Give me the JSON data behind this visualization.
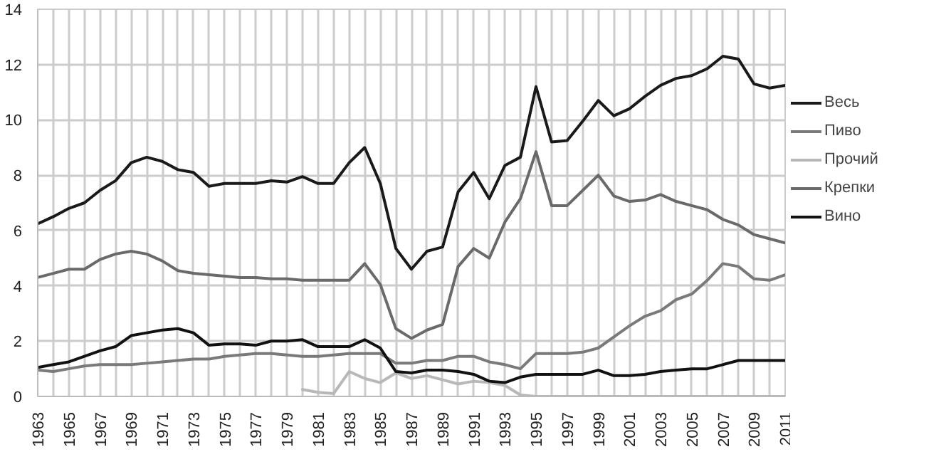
{
  "chart_data": {
    "type": "line",
    "x": [
      1963,
      1964,
      1965,
      1966,
      1967,
      1968,
      1969,
      1970,
      1971,
      1972,
      1973,
      1974,
      1975,
      1976,
      1977,
      1978,
      1979,
      1980,
      1981,
      1982,
      1983,
      1984,
      1985,
      1986,
      1987,
      1988,
      1989,
      1990,
      1991,
      1992,
      1993,
      1994,
      1995,
      1996,
      1997,
      1998,
      1999,
      2000,
      2001,
      2002,
      2003,
      2004,
      2005,
      2006,
      2007,
      2008,
      2009,
      2010,
      2011
    ],
    "series": [
      {
        "name": "Весь",
        "color": "#1a1a1a",
        "values": [
          6.24,
          6.5,
          6.8,
          7.0,
          7.45,
          7.8,
          8.45,
          8.65,
          8.5,
          8.2,
          8.1,
          7.6,
          7.7,
          7.7,
          7.7,
          7.8,
          7.75,
          7.95,
          7.7,
          7.7,
          8.45,
          9.0,
          7.7,
          5.35,
          4.6,
          5.25,
          5.4,
          7.4,
          8.1,
          7.15,
          8.35,
          8.65,
          11.2,
          9.2,
          9.25,
          9.95,
          10.7,
          10.15,
          10.4,
          10.85,
          11.25,
          11.5,
          11.6,
          11.85,
          12.3,
          12.2,
          11.3,
          11.15,
          11.25
        ]
      },
      {
        "name": "Пиво",
        "color": "#7a7a7a",
        "values": [
          0.95,
          0.9,
          1.0,
          1.1,
          1.15,
          1.15,
          1.15,
          1.2,
          1.25,
          1.3,
          1.35,
          1.35,
          1.45,
          1.5,
          1.55,
          1.55,
          1.5,
          1.45,
          1.45,
          1.5,
          1.55,
          1.55,
          1.55,
          1.2,
          1.2,
          1.3,
          1.3,
          1.45,
          1.45,
          1.25,
          1.15,
          1.0,
          1.55,
          1.55,
          1.55,
          1.6,
          1.75,
          2.15,
          2.55,
          2.9,
          3.1,
          3.5,
          3.7,
          4.2,
          4.8,
          4.7,
          4.25,
          4.2,
          4.4
        ]
      },
      {
        "name": "Прочий",
        "color": "#b8b8b8",
        "values": [
          null,
          null,
          null,
          null,
          null,
          null,
          null,
          null,
          null,
          null,
          null,
          null,
          null,
          null,
          null,
          null,
          null,
          0.25,
          0.15,
          0.1,
          0.9,
          0.65,
          0.5,
          0.85,
          0.65,
          0.75,
          0.6,
          0.45,
          0.55,
          0.5,
          0.4,
          0.05,
          0,
          0,
          0,
          0,
          0,
          0,
          0,
          0,
          0,
          0,
          0,
          0,
          0,
          0,
          0,
          0,
          0
        ]
      },
      {
        "name": "Крепки",
        "color": "#6a6a6a",
        "values": [
          4.3,
          4.45,
          4.6,
          4.6,
          4.95,
          5.15,
          5.25,
          5.15,
          4.9,
          4.55,
          4.45,
          4.4,
          4.35,
          4.3,
          4.3,
          4.25,
          4.25,
          4.2,
          4.2,
          4.2,
          4.2,
          4.8,
          4.05,
          2.45,
          2.1,
          2.4,
          2.6,
          4.7,
          5.35,
          5.0,
          6.3,
          7.15,
          8.85,
          6.9,
          6.9,
          7.45,
          8.0,
          7.25,
          7.05,
          7.1,
          7.3,
          7.05,
          6.9,
          6.75,
          6.4,
          6.2,
          5.85,
          5.7,
          5.55
        ]
      },
      {
        "name": "Вино",
        "color": "#111111",
        "values": [
          1.05,
          1.15,
          1.25,
          1.45,
          1.65,
          1.8,
          2.2,
          2.3,
          2.4,
          2.45,
          2.3,
          1.85,
          1.9,
          1.9,
          1.85,
          2.0,
          2.0,
          2.05,
          1.8,
          1.8,
          1.8,
          2.05,
          1.75,
          0.9,
          0.85,
          0.95,
          0.95,
          0.9,
          0.8,
          0.55,
          0.5,
          0.7,
          0.8,
          0.8,
          0.8,
          0.8,
          0.95,
          0.75,
          0.75,
          0.8,
          0.9,
          0.95,
          1.0,
          1.0,
          1.15,
          1.3,
          1.3,
          1.3,
          1.3
        ]
      }
    ],
    "xlim": [
      1963,
      2011
    ],
    "xticks": [
      1963,
      {
        "value": 1964,
        "label": null
      },
      1965,
      {
        "value": 1966,
        "label": null
      },
      1967,
      {
        "value": 1968,
        "label": null
      },
      1969,
      {
        "value": 1970,
        "label": null
      },
      1971,
      {
        "value": 1972,
        "label": null
      },
      1973,
      {
        "value": 1974,
        "label": null
      },
      1975,
      {
        "value": 1976,
        "label": null
      },
      1977,
      {
        "value": 1978,
        "label": null
      },
      1979,
      {
        "value": 1980,
        "label": null
      },
      1981,
      {
        "value": 1982,
        "label": null
      },
      1983,
      {
        "value": 1984,
        "label": null
      },
      1985,
      {
        "value": 1986,
        "label": null
      },
      1987,
      {
        "value": 1988,
        "label": null
      },
      1989,
      {
        "value": 1990,
        "label": null
      },
      1991,
      {
        "value": 1992,
        "label": null
      },
      1993,
      {
        "value": 1994,
        "label": null
      },
      1995,
      {
        "value": 1996,
        "label": null
      },
      1997,
      {
        "value": 1998,
        "label": null
      },
      1999,
      {
        "value": 2000,
        "label": null
      },
      2001,
      {
        "value": 2002,
        "label": null
      },
      2003,
      {
        "value": 2004,
        "label": null
      },
      2005,
      {
        "value": 2006,
        "label": null
      },
      2007,
      {
        "value": 2008,
        "label": null
      },
      2009,
      {
        "value": 2010,
        "label": null
      },
      2011
    ],
    "ylim": [
      0,
      14
    ],
    "yticks": [
      0,
      2,
      4,
      6,
      8,
      10,
      12,
      14
    ],
    "grid": true,
    "legend": "right",
    "marker": "none",
    "line_style": "solid"
  }
}
